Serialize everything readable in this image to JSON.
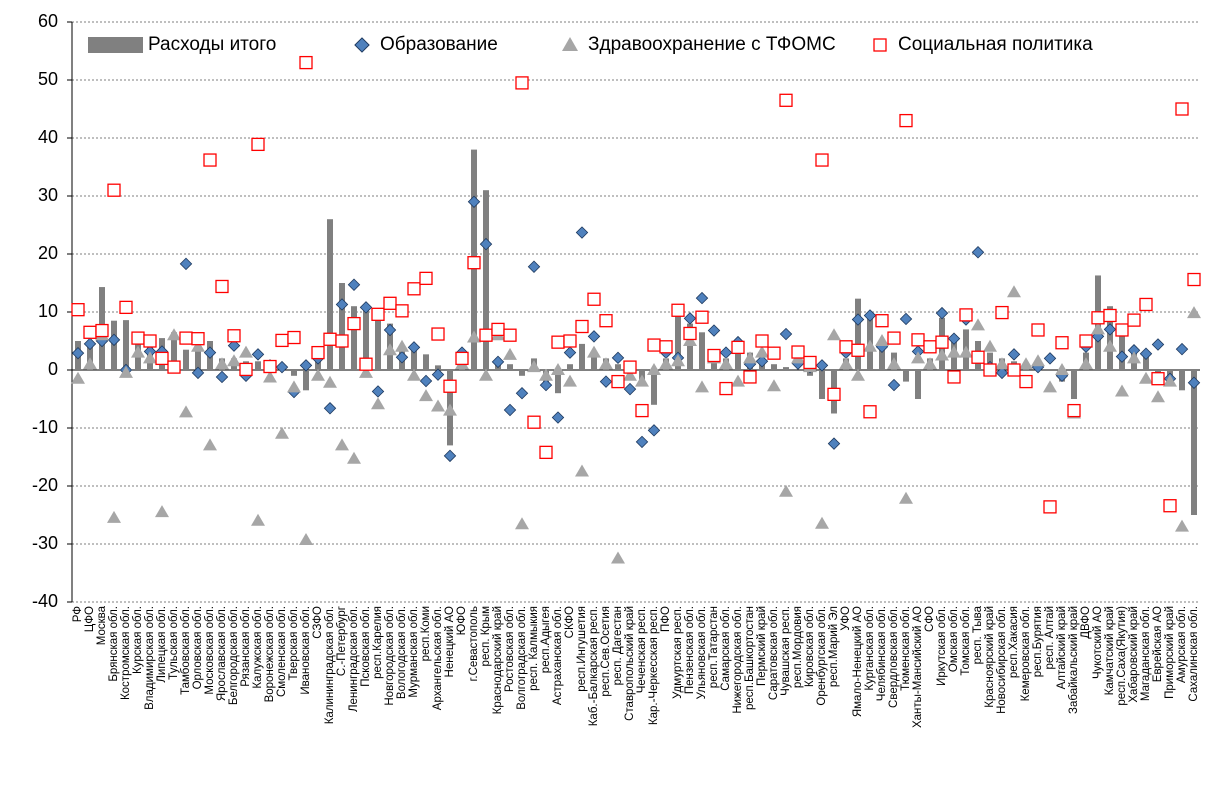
{
  "chart_data": {
    "type": "bar-scatter",
    "categories": [
      "РФ",
      "ЦФО",
      "Москва",
      "Брянская обл.",
      "Костромская обл.",
      "Курская обл.",
      "Владимирская обл.",
      "Липецкая обл.",
      "Тульская обл.",
      "Тамбовская обл.",
      "Орловская обл.",
      "Московская обл.",
      "Ярославская обл.",
      "Белгородская обл.",
      "Рязанская обл.",
      "Калужская обл.",
      "Воронежская обл.",
      "Смоленская обл.",
      "Тверская обл.",
      "Ивановская обл.",
      "СЗФО",
      "Калининградская обл.",
      "С.-Петербург",
      "Ленинградская обл.",
      "Псковская обл.",
      "респ.Карелия",
      "Новгородская обл.",
      "Вологодская обл.",
      "Мурманская обл.",
      "респ.Коми",
      "Архангельская обл.",
      "Ненецкий АО",
      "ЮФО",
      "г.Севастополь",
      "респ. Крым",
      "Краснодарский край",
      "Ростовская обл.",
      "Волгоградская обл.",
      "респ. Калмыкия",
      "респ.Адыгея",
      "Астраханская обл.",
      "СКФО",
      "респ.Ингушетия",
      "Каб.-Балкарская респ.",
      "респ.Сев.Осетия",
      "респ. Дагестан",
      "Ставропольский край",
      "Чеченская респ.",
      "Кар.-Черкесская респ.",
      "ПФО",
      "Удмуртская респ.",
      "Пензенская обл.",
      "Ульяновская обл.",
      "респ.Татарстан",
      "Самарская обл.",
      "Нижегородская обл.",
      "респ.Башкортостан",
      "Пермский край",
      "Саратовская обл.",
      "Чувашская респ.",
      "респ.Мордовия",
      "Кировская обл.",
      "Оренбургская обл.",
      "респ.Марий Эл",
      "УФО",
      "Ямало-Ненецкий АО",
      "Курганская обл.",
      "Челябинская обл.",
      "Свердловская обл.",
      "Тюменская обл.",
      "Ханты-Мансийский АО",
      "СФО",
      "Иркутская обл.",
      "Омская обл.",
      "Томская обл.",
      "респ. Тыва",
      "Красноярский край",
      "Новосибирская обл.",
      "респ.Хакасия",
      "Кемеровская обл.",
      "респ.Бурятия",
      "респ. Алтай",
      "Алтайский край",
      "Забайкальский край",
      "ДВФО",
      "Чукотский АО",
      "Камчатский край",
      "респ.Саха(Якутия)",
      "Хабаровский край",
      "Магаданская обл.",
      "Еврейская АО",
      "Приморский край",
      "Амурская обл.",
      "Сахалинская обл."
    ],
    "series": [
      {
        "name": "Расходы итого",
        "mark": "bar",
        "color": "#808080",
        "values": [
          5,
          4,
          14.3,
          8.5,
          8.6,
          6,
          5,
          5.5,
          6.5,
          3.5,
          6,
          5,
          2,
          2,
          1.5,
          1.5,
          1,
          0.5,
          -1,
          -3.5,
          3,
          26,
          15,
          11,
          11,
          10,
          8,
          4,
          4,
          2.7,
          0.8,
          -13,
          3,
          38,
          31,
          2,
          1,
          -1,
          2,
          -3,
          -4,
          1,
          4.5,
          3,
          2,
          1,
          0.5,
          -2,
          -6,
          2,
          10,
          8,
          6.5,
          3,
          2,
          4,
          3,
          2,
          1,
          0.5,
          0,
          -1,
          -5,
          -7.5,
          2,
          12.3,
          9.5,
          5,
          3,
          -2,
          -5,
          2,
          9,
          6,
          7,
          5,
          3,
          2,
          1.5,
          1,
          0.5,
          0,
          -2,
          -5,
          3,
          16.3,
          11,
          8,
          4,
          3,
          -1,
          -2,
          -3.5,
          -25
        ]
      },
      {
        "name": "Образование",
        "mark": "diamond",
        "color": "#4f81bd",
        "values": [
          2.9,
          4.5,
          5,
          5.2,
          0,
          5.5,
          3.2,
          3.2,
          0.5,
          18.3,
          -0.5,
          3,
          -1.2,
          4.2,
          -1,
          2.7,
          0.8,
          0.5,
          -3.8,
          0.8,
          2,
          -6.6,
          11.3,
          14.7,
          10.8,
          -3.7,
          6.9,
          2.2,
          3.9,
          -1.9,
          -0.8,
          -14.8,
          3,
          29,
          21.7,
          1.4,
          -6.9,
          -4,
          17.8,
          -2.6,
          -8.2,
          3,
          23.7,
          5.8,
          -2,
          2.1,
          -3.3,
          -12.4,
          -10.4,
          3,
          2.1,
          8.9,
          12.4,
          6.8,
          3,
          4.8,
          1,
          1.5,
          3,
          6.2,
          1.1,
          0.5,
          0.8,
          -12.7,
          3,
          8.7,
          9.4,
          4,
          -2.6,
          8.8,
          3.2,
          4,
          9.8,
          5.4,
          8.7,
          20.3,
          0.5,
          -0.5,
          2.7,
          -2,
          0.5,
          2,
          -1,
          -7,
          4,
          5.8,
          7,
          2.3,
          3.4,
          2.8,
          4.4,
          -1.5,
          3.6,
          -2.2
        ]
      },
      {
        "name": "Здравоохранение с ТФОМС",
        "mark": "triangle",
        "color": "#a6a6a6",
        "values": [
          -1.5,
          1,
          6,
          -25.5,
          -0.5,
          3,
          2,
          -24.5,
          6,
          -7.3,
          4,
          -13,
          1,
          1.5,
          3,
          -26,
          -1.3,
          -11,
          -3,
          -29.3,
          -1,
          -2.2,
          -13,
          -15.3,
          -0.5,
          -5.9,
          3.4,
          4,
          -1,
          -4.5,
          -6.3,
          -7,
          1,
          5.6,
          -1,
          6,
          2.6,
          -26.6,
          0.5,
          -1,
          0,
          -2,
          -17.5,
          3,
          1,
          -32.5,
          -1,
          -2,
          0,
          1,
          1.5,
          5,
          -3,
          2,
          1,
          -2,
          2,
          3,
          -2.8,
          -21,
          2,
          0.5,
          -26.5,
          6,
          1,
          -1,
          4,
          5,
          1,
          -22.2,
          2,
          1,
          2.5,
          3,
          3,
          7.7,
          4,
          1,
          13.4,
          1,
          1.5,
          -3,
          0,
          -7.5,
          1,
          7,
          4,
          -3.7,
          2,
          -1.5,
          -4.7,
          -2,
          -27,
          9.8
        ]
      },
      {
        "name": "Социальная политика",
        "mark": "square",
        "color": "#ff0000",
        "values": [
          10.4,
          6.5,
          6.8,
          31,
          10.8,
          5.5,
          5,
          2,
          0.5,
          5.5,
          5.4,
          36.2,
          14.4,
          5.9,
          0.1,
          38.9,
          0.6,
          5.1,
          5.6,
          53,
          3,
          5.3,
          5,
          8,
          1,
          9.6,
          11.5,
          10.2,
          14,
          15.8,
          6.2,
          -2.8,
          2,
          18.5,
          6,
          7,
          6,
          49.5,
          -9,
          -14.2,
          4.8,
          5,
          7.5,
          12.2,
          8.5,
          -2,
          0.5,
          -7,
          4.3,
          4,
          10.3,
          6.3,
          9.1,
          2.5,
          -3.2,
          3.9,
          -1.2,
          5,
          2.9,
          46.5,
          3.1,
          1.3,
          36.2,
          -4.2,
          4,
          3.4,
          -7.2,
          8.5,
          5.5,
          43,
          5.2,
          4,
          4.8,
          -1.2,
          9.5,
          2.2,
          0,
          9.9,
          0,
          -2,
          6.9,
          -23.6,
          4.7,
          -7,
          5,
          9,
          9.4,
          6.9,
          8.6,
          11.3,
          -1.5,
          -23.4,
          45,
          15.6
        ]
      }
    ],
    "ylim": [
      -40,
      60
    ],
    "yticks": [
      -40,
      -30,
      -20,
      -10,
      0,
      10,
      20,
      30,
      40,
      50,
      60
    ],
    "grid": true
  }
}
